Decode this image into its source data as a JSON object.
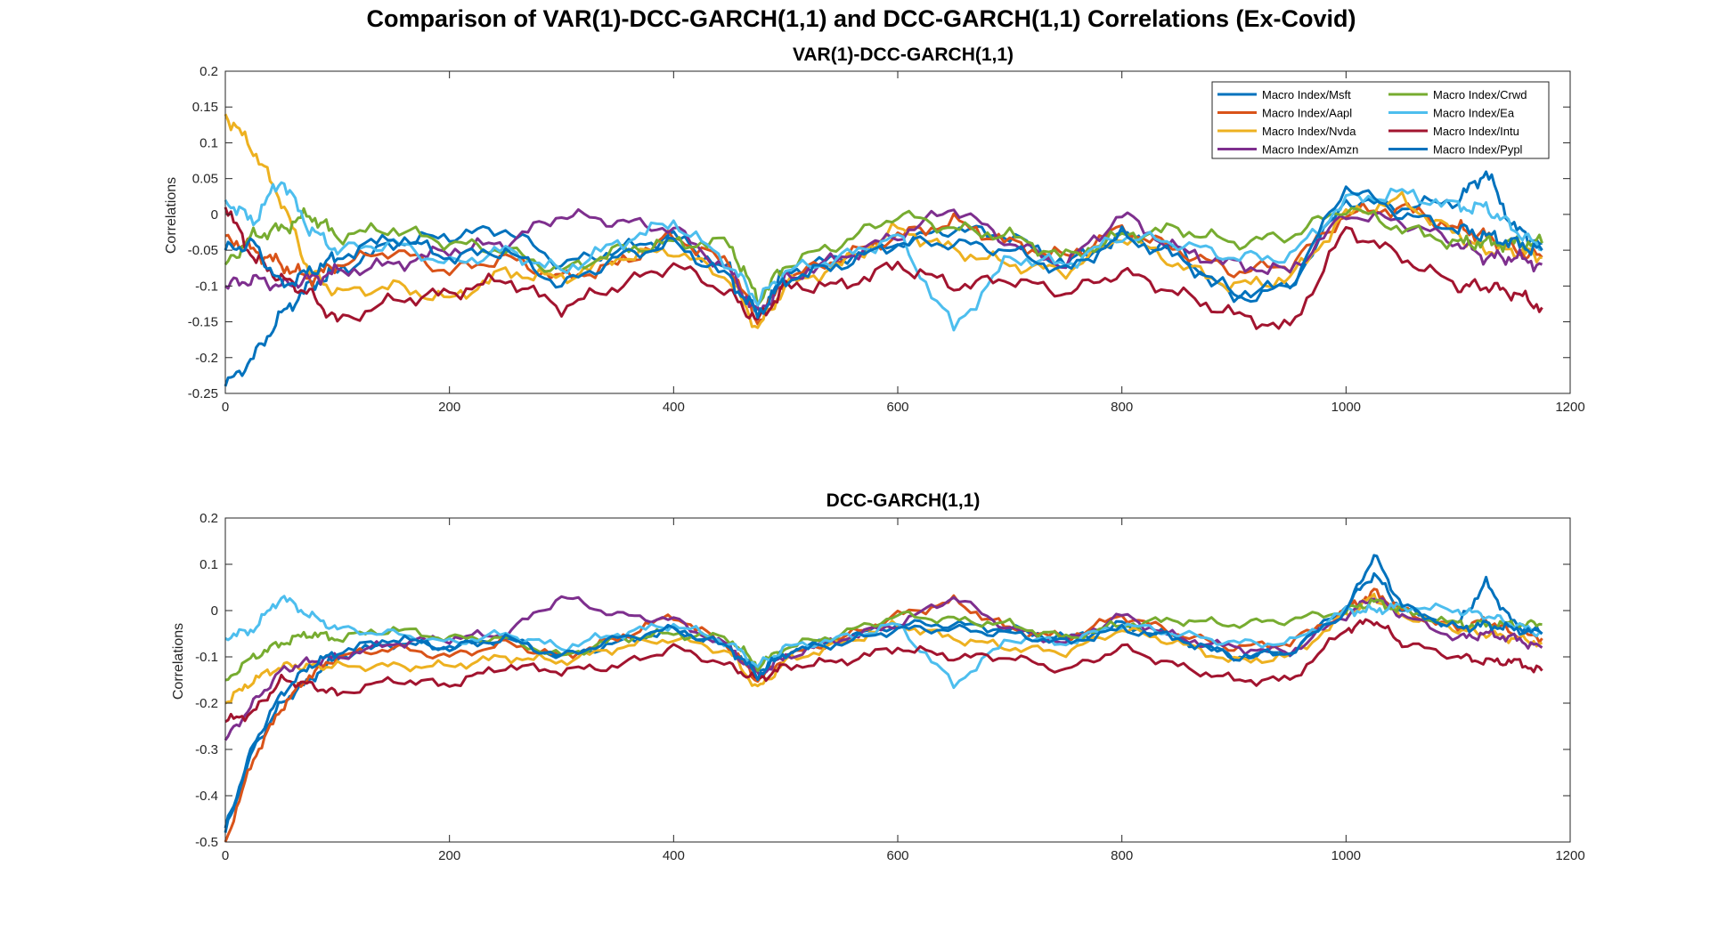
{
  "figure": {
    "title": "Comparison of VAR(1)-DCC-GARCH(1,1) and DCC-GARCH(1,1) Correlations (Ex-Covid)"
  },
  "chart_data": [
    {
      "type": "line",
      "title": "VAR(1)-DCC-GARCH(1,1)",
      "xlabel": "",
      "ylabel": "Correlations",
      "xlim": [
        0,
        1200
      ],
      "ylim": [
        -0.25,
        0.2
      ],
      "xticks": [
        0,
        200,
        400,
        600,
        800,
        1000,
        1200
      ],
      "yticks": [
        -0.25,
        -0.2,
        -0.15,
        -0.1,
        -0.05,
        0,
        0.05,
        0.1,
        0.15,
        0.2
      ],
      "xtick_labels": [
        "0",
        "200",
        "400",
        "600",
        "800",
        "1000",
        "1200"
      ],
      "ytick_labels": [
        "-0.25",
        "-0.2",
        "-0.15",
        "-0.1",
        "-0.05",
        "0",
        "0.05",
        "0.1",
        "0.15",
        "0.2"
      ],
      "grid": false,
      "legend": "top-right",
      "x": [
        0,
        25,
        50,
        75,
        100,
        150,
        200,
        250,
        300,
        350,
        400,
        450,
        475,
        500,
        550,
        600,
        650,
        700,
        750,
        800,
        850,
        900,
        950,
        1000,
        1050,
        1100,
        1125,
        1150,
        1175
      ],
      "series": [
        {
          "name": "Macro Index/Msft",
          "color": "#0072BD",
          "values": [
            -0.24,
            -0.2,
            -0.14,
            -0.1,
            -0.08,
            -0.04,
            -0.03,
            -0.02,
            -0.07,
            -0.05,
            -0.03,
            -0.08,
            -0.14,
            -0.08,
            -0.06,
            -0.04,
            -0.02,
            -0.03,
            -0.07,
            -0.03,
            -0.05,
            -0.12,
            -0.1,
            0.02,
            0.01,
            0.02,
            0.06,
            -0.02,
            -0.04
          ]
        },
        {
          "name": "Macro Index/Aapl",
          "color": "#D95319",
          "values": [
            -0.03,
            -0.05,
            -0.07,
            -0.09,
            -0.07,
            -0.05,
            -0.08,
            -0.06,
            -0.09,
            -0.07,
            -0.03,
            -0.07,
            -0.15,
            -0.09,
            -0.06,
            -0.03,
            -0.01,
            -0.04,
            -0.06,
            -0.02,
            -0.05,
            -0.08,
            -0.07,
            0.0,
            0.01,
            -0.02,
            -0.03,
            -0.05,
            -0.06
          ]
        },
        {
          "name": "Macro Index/Nvda",
          "color": "#EDB120",
          "values": [
            0.14,
            0.09,
            0.02,
            -0.08,
            -0.11,
            -0.1,
            -0.12,
            -0.08,
            -0.09,
            -0.06,
            -0.05,
            -0.09,
            -0.16,
            -0.1,
            -0.07,
            -0.02,
            -0.05,
            -0.07,
            -0.08,
            -0.03,
            -0.07,
            -0.1,
            -0.09,
            0.0,
            0.02,
            -0.03,
            -0.05,
            -0.05,
            -0.06
          ]
        },
        {
          "name": "Macro Index/Amzn",
          "color": "#7E2F8E",
          "values": [
            -0.1,
            -0.09,
            -0.1,
            -0.09,
            -0.08,
            -0.07,
            -0.05,
            -0.04,
            0.0,
            -0.01,
            -0.02,
            -0.08,
            -0.14,
            -0.09,
            -0.06,
            -0.03,
            0.01,
            -0.04,
            -0.07,
            0.0,
            -0.05,
            -0.07,
            -0.08,
            0.0,
            -0.01,
            -0.04,
            -0.06,
            -0.06,
            -0.07
          ]
        },
        {
          "name": "Macro Index/Crwd",
          "color": "#77AC30",
          "values": [
            -0.07,
            -0.03,
            -0.02,
            0.0,
            -0.03,
            -0.02,
            -0.04,
            -0.05,
            -0.08,
            -0.05,
            -0.04,
            -0.04,
            -0.12,
            -0.07,
            -0.04,
            0.0,
            -0.02,
            -0.03,
            -0.06,
            -0.03,
            -0.02,
            -0.04,
            -0.03,
            0.01,
            -0.02,
            -0.04,
            -0.04,
            -0.04,
            -0.04
          ]
        },
        {
          "name": "Macro Index/Ea",
          "color": "#4DBEEE",
          "values": [
            0.02,
            -0.01,
            0.05,
            -0.02,
            -0.05,
            -0.04,
            -0.07,
            -0.05,
            -0.08,
            -0.04,
            -0.01,
            -0.07,
            -0.12,
            -0.08,
            -0.06,
            -0.03,
            -0.16,
            -0.06,
            -0.07,
            -0.03,
            -0.04,
            -0.06,
            -0.06,
            0.02,
            0.03,
            0.01,
            0.01,
            -0.02,
            -0.05
          ]
        },
        {
          "name": "Macro Index/Intu",
          "color": "#A2142F",
          "values": [
            0.01,
            -0.06,
            -0.09,
            -0.11,
            -0.15,
            -0.12,
            -0.11,
            -0.09,
            -0.13,
            -0.1,
            -0.07,
            -0.11,
            -0.15,
            -0.1,
            -0.1,
            -0.07,
            -0.1,
            -0.09,
            -0.11,
            -0.08,
            -0.11,
            -0.14,
            -0.16,
            -0.02,
            -0.06,
            -0.1,
            -0.1,
            -0.11,
            -0.13
          ]
        },
        {
          "name": "Macro Index/Pypl",
          "color": "#0072BD",
          "values": [
            -0.05,
            -0.04,
            -0.1,
            -0.08,
            -0.06,
            -0.03,
            -0.06,
            -0.05,
            -0.1,
            -0.06,
            -0.04,
            -0.09,
            -0.14,
            -0.09,
            -0.07,
            -0.04,
            -0.04,
            -0.05,
            -0.08,
            -0.03,
            -0.06,
            -0.11,
            -0.1,
            0.04,
            0.0,
            -0.02,
            -0.03,
            -0.04,
            -0.05
          ]
        }
      ]
    },
    {
      "type": "line",
      "title": "DCC-GARCH(1,1)",
      "xlabel": "",
      "ylabel": "Correlations",
      "xlim": [
        0,
        1200
      ],
      "ylim": [
        -0.5,
        0.2
      ],
      "xticks": [
        0,
        200,
        400,
        600,
        800,
        1000,
        1200
      ],
      "yticks": [
        -0.5,
        -0.4,
        -0.3,
        -0.2,
        -0.1,
        0,
        0.1,
        0.2
      ],
      "xtick_labels": [
        "0",
        "200",
        "400",
        "600",
        "800",
        "1000",
        "1200"
      ],
      "ytick_labels": [
        "-0.5",
        "-0.4",
        "-0.3",
        "-0.2",
        "-0.1",
        "0",
        "0.1",
        "0.2"
      ],
      "grid": false,
      "x": [
        0,
        25,
        50,
        75,
        100,
        150,
        200,
        250,
        300,
        350,
        400,
        450,
        475,
        500,
        550,
        600,
        650,
        700,
        750,
        800,
        850,
        900,
        950,
        1000,
        1025,
        1050,
        1100,
        1125,
        1150,
        1175
      ],
      "series": [
        {
          "name": "Macro Index/Msft",
          "color": "#0072BD",
          "values": [
            -0.48,
            -0.3,
            -0.2,
            -0.15,
            -0.1,
            -0.07,
            -0.08,
            -0.06,
            -0.1,
            -0.07,
            -0.04,
            -0.08,
            -0.13,
            -0.09,
            -0.06,
            -0.03,
            -0.03,
            -0.04,
            -0.06,
            -0.03,
            -0.06,
            -0.1,
            -0.09,
            0.01,
            0.08,
            0.0,
            -0.03,
            0.06,
            -0.03,
            -0.05
          ]
        },
        {
          "name": "Macro Index/Aapl",
          "color": "#D95319",
          "values": [
            -0.5,
            -0.32,
            -0.21,
            -0.14,
            -0.1,
            -0.08,
            -0.1,
            -0.07,
            -0.1,
            -0.06,
            -0.01,
            -0.08,
            -0.15,
            -0.1,
            -0.06,
            -0.01,
            0.02,
            -0.04,
            -0.06,
            -0.01,
            -0.05,
            -0.08,
            -0.07,
            0.0,
            0.04,
            0.0,
            -0.04,
            -0.02,
            -0.05,
            -0.06
          ]
        },
        {
          "name": "Macro Index/Nvda",
          "color": "#EDB120",
          "values": [
            -0.2,
            -0.15,
            -0.12,
            -0.12,
            -0.12,
            -0.12,
            -0.12,
            -0.1,
            -0.11,
            -0.08,
            -0.06,
            -0.09,
            -0.17,
            -0.11,
            -0.07,
            -0.03,
            -0.06,
            -0.08,
            -0.09,
            -0.04,
            -0.07,
            -0.11,
            -0.1,
            -0.01,
            0.03,
            -0.01,
            -0.04,
            -0.05,
            -0.06,
            -0.07
          ]
        },
        {
          "name": "Macro Index/Amzn",
          "color": "#7E2F8E",
          "values": [
            -0.28,
            -0.2,
            -0.13,
            -0.11,
            -0.1,
            -0.07,
            -0.06,
            -0.05,
            0.03,
            -0.01,
            -0.02,
            -0.08,
            -0.14,
            -0.1,
            -0.06,
            -0.03,
            0.03,
            -0.04,
            -0.07,
            -0.01,
            -0.06,
            -0.08,
            -0.09,
            -0.01,
            0.03,
            -0.01,
            -0.06,
            -0.05,
            -0.06,
            -0.08
          ]
        },
        {
          "name": "Macro Index/Crwd",
          "color": "#77AC30",
          "values": [
            -0.15,
            -0.1,
            -0.07,
            -0.05,
            -0.06,
            -0.04,
            -0.06,
            -0.06,
            -0.1,
            -0.06,
            -0.05,
            -0.06,
            -0.12,
            -0.08,
            -0.05,
            -0.01,
            -0.02,
            -0.03,
            -0.06,
            -0.03,
            -0.02,
            -0.03,
            -0.02,
            0.0,
            0.02,
            0.0,
            -0.03,
            -0.03,
            -0.03,
            -0.03
          ]
        },
        {
          "name": "Macro Index/Ea",
          "color": "#4DBEEE",
          "values": [
            -0.06,
            -0.04,
            0.03,
            -0.01,
            -0.04,
            -0.05,
            -0.07,
            -0.05,
            -0.08,
            -0.05,
            -0.03,
            -0.07,
            -0.12,
            -0.08,
            -0.06,
            -0.03,
            -0.16,
            -0.06,
            -0.07,
            -0.03,
            -0.05,
            -0.07,
            -0.07,
            0.0,
            0.0,
            0.01,
            0.0,
            -0.01,
            -0.03,
            -0.05
          ]
        },
        {
          "name": "Macro Index/Intu",
          "color": "#A2142F",
          "values": [
            -0.24,
            -0.22,
            -0.15,
            -0.16,
            -0.18,
            -0.15,
            -0.16,
            -0.12,
            -0.13,
            -0.12,
            -0.08,
            -0.12,
            -0.15,
            -0.12,
            -0.11,
            -0.08,
            -0.1,
            -0.1,
            -0.13,
            -0.08,
            -0.12,
            -0.15,
            -0.15,
            -0.04,
            -0.02,
            -0.07,
            -0.1,
            -0.11,
            -0.11,
            -0.13
          ]
        },
        {
          "name": "Macro Index/Pypl",
          "color": "#0072BD",
          "values": [
            -0.47,
            -0.29,
            -0.18,
            -0.12,
            -0.09,
            -0.06,
            -0.08,
            -0.06,
            -0.1,
            -0.06,
            -0.04,
            -0.08,
            -0.14,
            -0.09,
            -0.07,
            -0.04,
            -0.04,
            -0.05,
            -0.07,
            -0.04,
            -0.06,
            -0.1,
            -0.09,
            0.0,
            0.12,
            0.01,
            -0.04,
            -0.03,
            -0.04,
            -0.05
          ]
        }
      ]
    }
  ]
}
